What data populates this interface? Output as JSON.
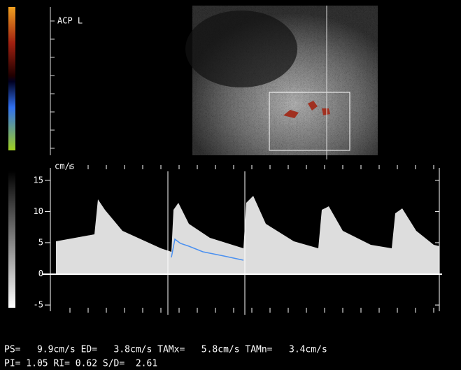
{
  "header": {
    "label": "ACP L"
  },
  "spectrum": {
    "unit": "cm/s",
    "ylim": [
      -6,
      17
    ],
    "yticks": [
      15,
      10,
      5,
      0,
      -5
    ]
  },
  "measurements": {
    "line1": "PS=   9.9cm/s ED=   3.8cm/s TAMx=   5.8cm/s TAMn=   3.4cm/s",
    "line2": "PI= 1.05 RI= 0.62 S/D=  2.61"
  }
}
